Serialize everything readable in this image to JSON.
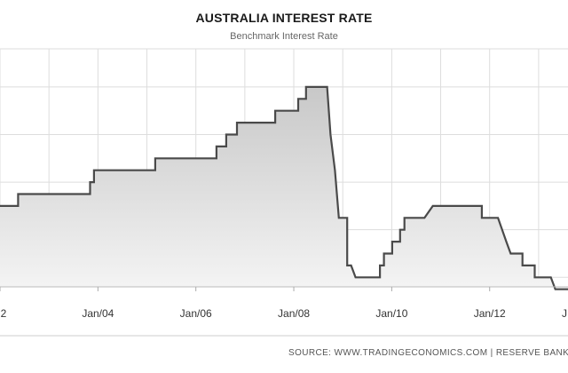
{
  "chart_data": {
    "type": "area",
    "title": "AUSTRALIA INTEREST RATE",
    "subtitle": "Benchmark Interest Rate",
    "source": "SOURCE: WWW.TRADINGECONOMICS.COM  |  RESERVE BANK",
    "xlabel": "",
    "ylabel": "",
    "x_ticks": [
      "2",
      "Jan/04",
      "Jan/06",
      "Jan/08",
      "Jan/10",
      "Jan/12",
      "J"
    ],
    "x_tick_years": [
      2002,
      2004,
      2006,
      2008,
      2010,
      2012,
      2014
    ],
    "xlim": [
      2002.0,
      2013.6
    ],
    "ylim": [
      2.8,
      7.8
    ],
    "grid": true,
    "legend": "none",
    "colors": {
      "line": "#4a4a4a",
      "fill_top": "#c8c8c8",
      "fill_bottom": "#f4f4f4",
      "grid": "#dddddd"
    },
    "series": [
      {
        "points": [
          [
            2002.0,
            4.5
          ],
          [
            2002.37,
            4.5
          ],
          [
            2002.37,
            4.75
          ],
          [
            2003.84,
            4.75
          ],
          [
            2003.84,
            5.0
          ],
          [
            2003.92,
            5.0
          ],
          [
            2003.92,
            5.25
          ],
          [
            2005.17,
            5.25
          ],
          [
            2005.17,
            5.5
          ],
          [
            2006.42,
            5.5
          ],
          [
            2006.42,
            5.75
          ],
          [
            2006.62,
            5.75
          ],
          [
            2006.62,
            6.0
          ],
          [
            2006.84,
            6.0
          ],
          [
            2006.84,
            6.25
          ],
          [
            2007.62,
            6.25
          ],
          [
            2007.62,
            6.5
          ],
          [
            2008.09,
            6.5
          ],
          [
            2008.09,
            6.75
          ],
          [
            2008.25,
            6.75
          ],
          [
            2008.25,
            7.0
          ],
          [
            2008.68,
            7.0
          ],
          [
            2008.75,
            6.0
          ],
          [
            2008.84,
            5.25
          ],
          [
            2008.92,
            4.25
          ],
          [
            2009.09,
            4.25
          ],
          [
            2009.09,
            3.25
          ],
          [
            2009.17,
            3.25
          ],
          [
            2009.26,
            3.0
          ],
          [
            2009.76,
            3.0
          ],
          [
            2009.76,
            3.25
          ],
          [
            2009.84,
            3.25
          ],
          [
            2009.84,
            3.5
          ],
          [
            2010.01,
            3.5
          ],
          [
            2010.01,
            3.75
          ],
          [
            2010.17,
            3.75
          ],
          [
            2010.17,
            4.0
          ],
          [
            2010.26,
            4.0
          ],
          [
            2010.26,
            4.25
          ],
          [
            2010.67,
            4.25
          ],
          [
            2010.84,
            4.5
          ],
          [
            2011.84,
            4.5
          ],
          [
            2011.84,
            4.25
          ],
          [
            2011.92,
            4.25
          ],
          [
            2011.92,
            4.25
          ],
          [
            2012.17,
            4.25
          ],
          [
            2012.34,
            3.75
          ],
          [
            2012.43,
            3.5
          ],
          [
            2012.67,
            3.5
          ],
          [
            2012.67,
            3.25
          ],
          [
            2012.92,
            3.25
          ],
          [
            2012.92,
            3.0
          ],
          [
            2013.25,
            3.0
          ],
          [
            2013.34,
            2.75
          ],
          [
            2013.6,
            2.75
          ]
        ]
      }
    ]
  }
}
